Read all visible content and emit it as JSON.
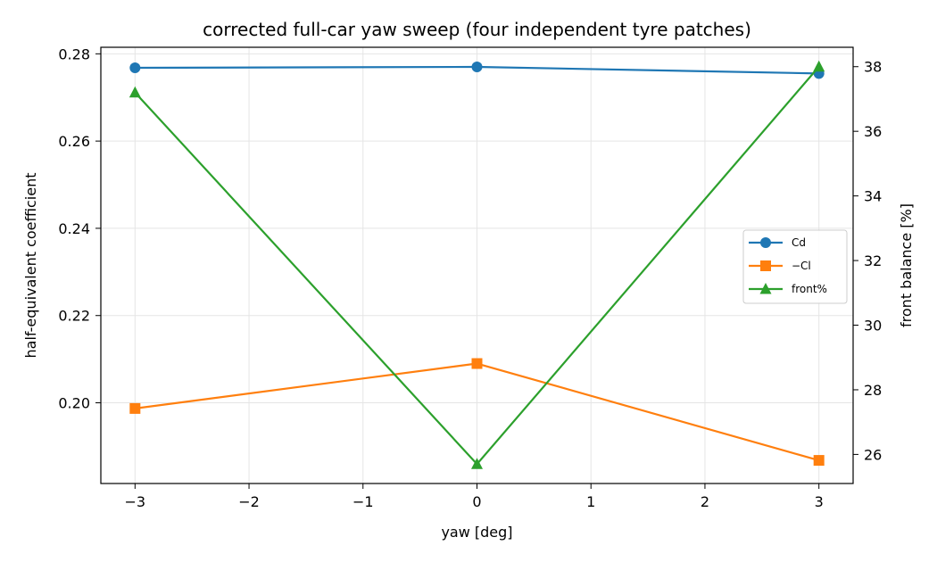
{
  "chart_data": {
    "type": "line",
    "title": "corrected full-car yaw sweep (four independent tyre patches)",
    "xlabel": "yaw [deg]",
    "ylabel": "half-equivalent coefficient",
    "y2label": "front balance [%]",
    "x": [
      -3,
      0,
      3
    ],
    "xlim": [
      -3.3,
      3.3
    ],
    "ylim": [
      0.1815,
      0.2815
    ],
    "y2lim": [
      25.1,
      38.6
    ],
    "xticks": [
      -3,
      -2,
      -1,
      0,
      1,
      2,
      3
    ],
    "yticks": [
      0.2,
      0.22,
      0.24,
      0.26,
      0.28
    ],
    "y2ticks": [
      26,
      28,
      30,
      32,
      34,
      36,
      38
    ],
    "xtick_labels": [
      "−3",
      "−2",
      "−1",
      "0",
      "1",
      "2",
      "3"
    ],
    "ytick_labels": [
      "0.20",
      "0.22",
      "0.24",
      "0.26",
      "0.28"
    ],
    "y2tick_labels": [
      "26",
      "28",
      "30",
      "32",
      "34",
      "36",
      "38"
    ],
    "grid": true,
    "legend_position": "center-right",
    "series": [
      {
        "name": "C_d",
        "legend_label": "Cd",
        "axis": "left",
        "marker": "circle",
        "color": "#1f77b4",
        "values": [
          0.2768,
          0.277,
          0.2755
        ]
      },
      {
        "name": "−C_l",
        "legend_label": "−Cl",
        "axis": "left",
        "marker": "square",
        "color": "#ff7f0e",
        "values": [
          0.1987,
          0.209,
          0.1868
        ]
      },
      {
        "name": "front%",
        "legend_label": "front%",
        "axis": "right",
        "marker": "triangle",
        "color": "#2ca02c",
        "values": [
          37.2,
          25.7,
          38.0
        ]
      }
    ]
  }
}
